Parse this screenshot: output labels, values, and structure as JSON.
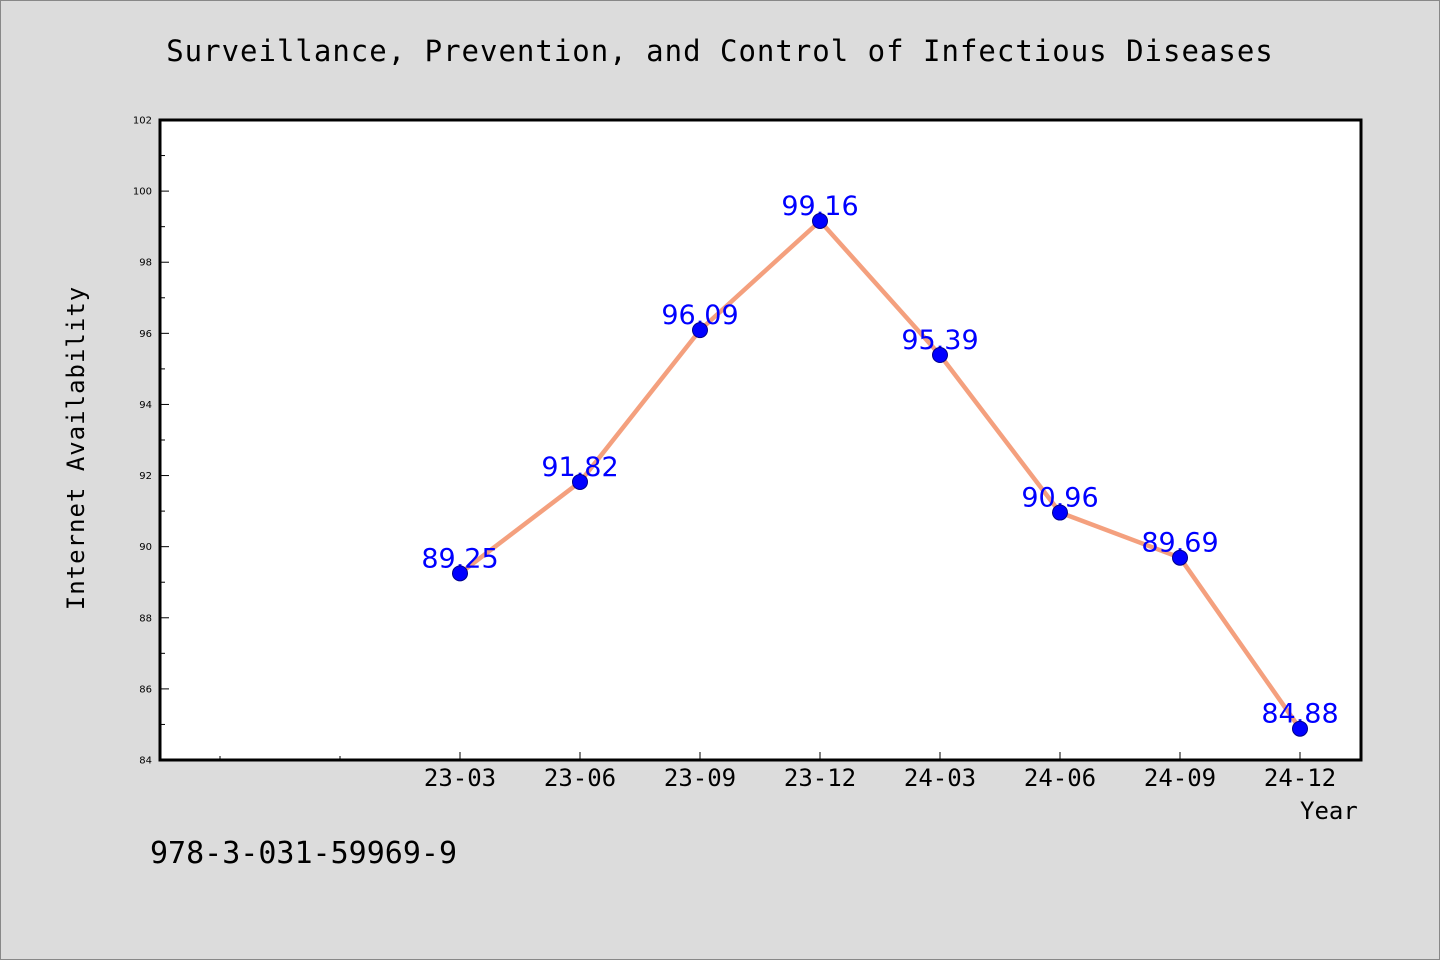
{
  "chart_data": {
    "type": "line",
    "title": "Surveillance, Prevention, and Control of Infectious Diseases",
    "xlabel": "Year",
    "ylabel": "Internet Availability",
    "categories": [
      "23-03",
      "23-06",
      "23-09",
      "23-12",
      "24-03",
      "24-06",
      "24-09",
      "24-12"
    ],
    "values": [
      89.25,
      91.82,
      96.09,
      99.16,
      95.39,
      90.96,
      89.69,
      84.88
    ],
    "data_labels": [
      "89.25",
      "91.82",
      "96.09",
      "99.16",
      "95.39",
      "90.96",
      "89.69",
      "84.88"
    ],
    "ylim": [
      84,
      102
    ],
    "yticks": [
      84,
      86,
      88,
      90,
      92,
      94,
      96,
      98,
      100,
      102
    ],
    "grid": false,
    "legend": "none",
    "colors": {
      "line": "#f4a07e",
      "marker": "#0000ff",
      "data_label": "#0000ff",
      "plot_background": "#ffffff",
      "figure_background": "#dcdcdc"
    }
  },
  "footer_note": "978-3-031-59969-9"
}
